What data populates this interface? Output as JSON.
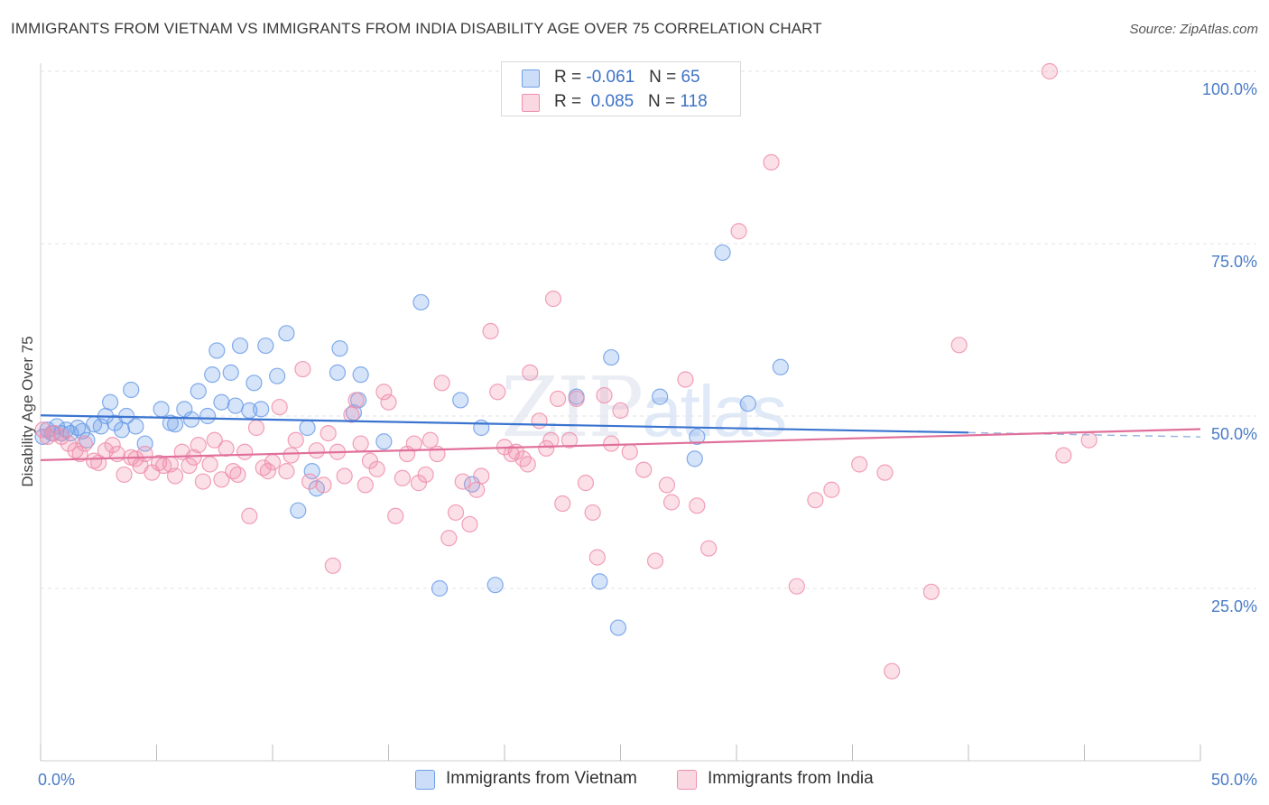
{
  "title": "IMMIGRANTS FROM VIETNAM VS IMMIGRANTS FROM INDIA DISABILITY AGE OVER 75 CORRELATION CHART",
  "source": "Source: ZipAtlas.com",
  "watermark": {
    "zip": "ZIP",
    "atlas": "atlas"
  },
  "legend": {
    "rows": [
      {
        "r_label": "R = ",
        "r_value": "-0.061",
        "n_label": "N = ",
        "n_value": "65",
        "color": "#6d9ee8"
      },
      {
        "r_label": "R = ",
        "r_value": "0.085",
        "n_label": "N = ",
        "n_value": "118",
        "color": "#ef8fad"
      }
    ]
  },
  "bottom_legend": [
    {
      "label": "Immigrants from Vietnam",
      "color": "#6d9ee8"
    },
    {
      "label": "Immigrants from India",
      "color": "#ef8fad"
    }
  ],
  "chart_data": {
    "type": "scatter",
    "title": "IMMIGRANTS FROM VIETNAM VS IMMIGRANTS FROM INDIA DISABILITY AGE OVER 75 CORRELATION CHART",
    "xlabel": "",
    "ylabel": "Disability Age Over 75",
    "xlim": [
      0,
      50
    ],
    "ylim": [
      0,
      102
    ],
    "x_tick_labels": [
      "0.0%",
      "50.0%"
    ],
    "y_tick_labels": [
      {
        "value": 25,
        "label": "25.0%"
      },
      {
        "value": 50,
        "label": "50.0%"
      },
      {
        "value": 75,
        "label": "75.0%"
      },
      {
        "value": 100,
        "label": "100.0%"
      }
    ],
    "grid": "horizontal dashed",
    "legend_position": "top-center",
    "series": [
      {
        "name": "Immigrants from Vietnam",
        "color": "#6d9ee8",
        "trend": {
          "x0": 0,
          "y0": 50.1,
          "x1": 40,
          "y1": 47.6,
          "dashed_to": 50
        },
        "points": [
          [
            0.1,
            47
          ],
          [
            0.3,
            48
          ],
          [
            0.5,
            47.5
          ],
          [
            0.7,
            48.5
          ],
          [
            0.9,
            47.5
          ],
          [
            1.1,
            48
          ],
          [
            1.3,
            47.5
          ],
          [
            1.6,
            48.3
          ],
          [
            1.8,
            47.8
          ],
          [
            2.0,
            46.5
          ],
          [
            2.3,
            48.8
          ],
          [
            2.6,
            48.5
          ],
          [
            2.8,
            50
          ],
          [
            3.0,
            52
          ],
          [
            3.2,
            49
          ],
          [
            3.5,
            48
          ],
          [
            3.7,
            50
          ],
          [
            3.9,
            53.8
          ],
          [
            4.1,
            48.5
          ],
          [
            4.5,
            46
          ],
          [
            5.2,
            51
          ],
          [
            5.6,
            49
          ],
          [
            5.8,
            48.8
          ],
          [
            6.2,
            51
          ],
          [
            6.5,
            49.5
          ],
          [
            6.8,
            53.6
          ],
          [
            7.2,
            50
          ],
          [
            7.4,
            56
          ],
          [
            7.6,
            59.5
          ],
          [
            7.8,
            52
          ],
          [
            8.2,
            56.3
          ],
          [
            8.4,
            51.5
          ],
          [
            8.6,
            60.2
          ],
          [
            9.0,
            50.8
          ],
          [
            9.2,
            54.8
          ],
          [
            9.5,
            51
          ],
          [
            9.7,
            60.2
          ],
          [
            10.2,
            55.8
          ],
          [
            10.6,
            62
          ],
          [
            11.1,
            36.3
          ],
          [
            11.5,
            48.3
          ],
          [
            11.7,
            42
          ],
          [
            11.9,
            39.5
          ],
          [
            12.8,
            56.3
          ],
          [
            12.9,
            59.8
          ],
          [
            13.5,
            50.5
          ],
          [
            13.7,
            52.3
          ],
          [
            13.8,
            56
          ],
          [
            14.8,
            46.3
          ],
          [
            16.4,
            66.5
          ],
          [
            17.2,
            25
          ],
          [
            18.1,
            52.3
          ],
          [
            18.6,
            40.1
          ],
          [
            19,
            48.3
          ],
          [
            19.6,
            25.5
          ],
          [
            23.1,
            52.8
          ],
          [
            24.1,
            26
          ],
          [
            24.6,
            58.5
          ],
          [
            24.9,
            19.3
          ],
          [
            26.7,
            52.8
          ],
          [
            28.2,
            43.8
          ],
          [
            28.3,
            47
          ],
          [
            29.4,
            73.7
          ],
          [
            30.5,
            51.8
          ],
          [
            31.9,
            57.1
          ]
        ]
      },
      {
        "name": "Immigrants from India",
        "color": "#ef8fad",
        "trend": {
          "x0": 0,
          "y0": 43.6,
          "x1": 50,
          "y1": 48.1
        },
        "points": [
          [
            0.1,
            48
          ],
          [
            0.3,
            47
          ],
          [
            0.6,
            47.5
          ],
          [
            0.9,
            47
          ],
          [
            1.2,
            46
          ],
          [
            1.5,
            45
          ],
          [
            1.7,
            44.5
          ],
          [
            1.9,
            46
          ],
          [
            2.3,
            43.5
          ],
          [
            2.5,
            43.2
          ],
          [
            2.8,
            45
          ],
          [
            3.1,
            45.8
          ],
          [
            3.3,
            44.5
          ],
          [
            3.6,
            41.5
          ],
          [
            3.9,
            44
          ],
          [
            4.1,
            43.8
          ],
          [
            4.3,
            42.8
          ],
          [
            4.5,
            44.5
          ],
          [
            4.8,
            41.8
          ],
          [
            5.1,
            43.2
          ],
          [
            5.3,
            42.8
          ],
          [
            5.6,
            43
          ],
          [
            5.8,
            41.3
          ],
          [
            6.1,
            44.8
          ],
          [
            6.4,
            42.8
          ],
          [
            6.6,
            44
          ],
          [
            6.8,
            45.8
          ],
          [
            7.0,
            40.5
          ],
          [
            7.3,
            43
          ],
          [
            7.5,
            46.5
          ],
          [
            7.8,
            40.8
          ],
          [
            8.0,
            45.3
          ],
          [
            8.3,
            42
          ],
          [
            8.5,
            41.5
          ],
          [
            8.8,
            44.8
          ],
          [
            9.0,
            35.5
          ],
          [
            9.3,
            48.3
          ],
          [
            9.6,
            42.5
          ],
          [
            9.8,
            42
          ],
          [
            10.0,
            43.3
          ],
          [
            10.3,
            51.3
          ],
          [
            10.6,
            42
          ],
          [
            10.8,
            44.3
          ],
          [
            11.0,
            46.5
          ],
          [
            11.3,
            56.8
          ],
          [
            11.6,
            40.5
          ],
          [
            11.9,
            45
          ],
          [
            12.2,
            40
          ],
          [
            12.4,
            47.5
          ],
          [
            12.6,
            28.3
          ],
          [
            12.8,
            44.8
          ],
          [
            13.1,
            41.3
          ],
          [
            13.4,
            50.2
          ],
          [
            13.6,
            52.3
          ],
          [
            13.8,
            46
          ],
          [
            14.0,
            40
          ],
          [
            14.2,
            43.5
          ],
          [
            14.5,
            42.3
          ],
          [
            14.8,
            53.5
          ],
          [
            15.0,
            52
          ],
          [
            15.3,
            35.5
          ],
          [
            15.6,
            41
          ],
          [
            15.8,
            44.5
          ],
          [
            16.1,
            46
          ],
          [
            16.3,
            40.3
          ],
          [
            16.6,
            41.5
          ],
          [
            16.8,
            46.5
          ],
          [
            17.1,
            44.5
          ],
          [
            17.3,
            54.8
          ],
          [
            17.6,
            32.3
          ],
          [
            17.9,
            36
          ],
          [
            18.2,
            40.5
          ],
          [
            18.5,
            34.3
          ],
          [
            18.8,
            39.3
          ],
          [
            19.0,
            41.3
          ],
          [
            19.4,
            62.3
          ],
          [
            19.7,
            53.5
          ],
          [
            20.0,
            45.5
          ],
          [
            20.3,
            44.5
          ],
          [
            20.5,
            44.8
          ],
          [
            20.8,
            43.8
          ],
          [
            21.1,
            56.3
          ],
          [
            21.5,
            49.3
          ],
          [
            21.8,
            45.3
          ],
          [
            22.1,
            67
          ],
          [
            22.3,
            52.5
          ],
          [
            22.5,
            37.3
          ],
          [
            22.8,
            46.5
          ],
          [
            23.1,
            52.5
          ],
          [
            23.5,
            40.3
          ],
          [
            23.8,
            36
          ],
          [
            24.0,
            29.5
          ],
          [
            24.3,
            53
          ],
          [
            25.4,
            44.8
          ],
          [
            26.5,
            29
          ],
          [
            27.2,
            37.5
          ],
          [
            27.8,
            55.3
          ],
          [
            28.3,
            37
          ],
          [
            28.8,
            30.8
          ],
          [
            30.1,
            76.8
          ],
          [
            31.5,
            86.8
          ],
          [
            32.6,
            25.3
          ],
          [
            33.4,
            37.8
          ],
          [
            34.1,
            39.3
          ],
          [
            35.3,
            43
          ],
          [
            36.4,
            41.8
          ],
          [
            36.7,
            13
          ],
          [
            38.4,
            24.5
          ],
          [
            39.6,
            60.3
          ],
          [
            43.5,
            100
          ],
          [
            44.1,
            44.3
          ],
          [
            45.2,
            46.5
          ],
          [
            27.0,
            40.0
          ],
          [
            26.0,
            42.2
          ],
          [
            25.0,
            50.8
          ],
          [
            24.6,
            46.0
          ],
          [
            22.0,
            46.5
          ],
          [
            21.0,
            43.0
          ]
        ]
      }
    ]
  }
}
